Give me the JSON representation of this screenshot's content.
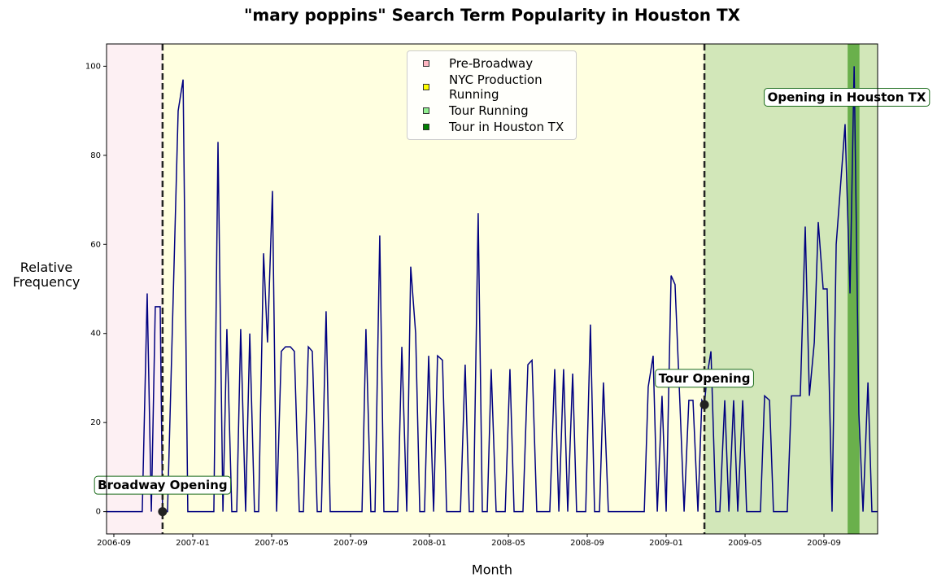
{
  "chart_data": {
    "type": "line",
    "title": "\"mary poppins\" Search Term Popularity in Houston TX",
    "x_label": "Month",
    "y_label": "Relative Frequency",
    "color": "#000080",
    "x": [
      -0.37,
      1.44,
      1.69,
      1.9,
      2.1,
      2.35,
      2.47,
      2.72,
      3.26,
      3.51,
      3.75,
      5.07,
      5.28,
      5.53,
      5.73,
      5.98,
      6.23,
      6.43,
      6.68,
      6.89,
      7.13,
      7.34,
      7.59,
      7.79,
      8.04,
      8.25,
      8.49,
      8.7,
      8.95,
      9.15,
      9.4,
      9.61,
      9.86,
      10.06,
      10.31,
      10.52,
      10.76,
      10.97,
      12.58,
      12.78,
      13.03,
      13.24,
      13.48,
      13.69,
      14.39,
      14.6,
      14.85,
      15.05,
      15.3,
      15.51,
      15.75,
      15.96,
      16.21,
      16.41,
      16.66,
      16.87,
      17.57,
      17.81,
      18.02,
      18.23,
      18.47,
      18.68,
      18.93,
      19.13,
      19.38,
      19.84,
      20.08,
      20.29,
      20.74,
      20.99,
      21.2,
      21.44,
      22.1,
      22.35,
      22.56,
      22.8,
      23.01,
      23.26,
      23.46,
      23.92,
      24.16,
      24.37,
      24.62,
      24.82,
      25.07,
      26.89,
      27.09,
      27.34,
      27.55,
      27.79,
      28.0,
      28.25,
      28.45,
      28.7,
      28.91,
      29.15,
      29.36,
      29.61,
      29.81,
      29.94,
      30.06,
      30.27,
      30.52,
      30.72,
      30.97,
      31.18,
      31.42,
      31.63,
      31.88,
      32.08,
      32.78,
      32.99,
      33.24,
      33.44,
      34.14,
      34.35,
      34.8,
      35.05,
      35.26,
      35.51,
      35.71,
      35.96,
      36.16,
      36.41,
      36.62,
      37.07,
      37.32,
      37.53,
      37.77,
      37.98,
      38.23,
      38.43,
      38.72
    ],
    "values": [
      0,
      0,
      49,
      0,
      46,
      46,
      0,
      0,
      90,
      97,
      0,
      0,
      83,
      0,
      41,
      0,
      0,
      41,
      0,
      40,
      0,
      0,
      58,
      38,
      72,
      0,
      36,
      37,
      37,
      36,
      0,
      0,
      37,
      36,
      0,
      0,
      45,
      0,
      0,
      41,
      0,
      0,
      62,
      0,
      0,
      37,
      0,
      55,
      40,
      0,
      0,
      35,
      0,
      35,
      34,
      0,
      0,
      33,
      0,
      0,
      67,
      0,
      0,
      32,
      0,
      0,
      32,
      0,
      0,
      33,
      34,
      0,
      0,
      32,
      0,
      32,
      0,
      31,
      0,
      0,
      42,
      0,
      0,
      29,
      0,
      0,
      28,
      35,
      0,
      26,
      0,
      53,
      51,
      24,
      0,
      25,
      25,
      0,
      25,
      24,
      30,
      36,
      0,
      0,
      25,
      0,
      25,
      0,
      25,
      0,
      0,
      26,
      25,
      0,
      0,
      26,
      26,
      64,
      26,
      38,
      65,
      50,
      50,
      0,
      60,
      87,
      49,
      100,
      22,
      0,
      29,
      0,
      0
    ],
    "xlim": [
      -0.37,
      38.72
    ],
    "ylim": [
      -5,
      105
    ],
    "xticks": [
      {
        "value": 0,
        "label": "2006-09"
      },
      {
        "value": 4,
        "label": "2007-01"
      },
      {
        "value": 8,
        "label": "2007-05"
      },
      {
        "value": 12,
        "label": "2007-09"
      },
      {
        "value": 16,
        "label": "2008-01"
      },
      {
        "value": 20,
        "label": "2008-05"
      },
      {
        "value": 24,
        "label": "2008-09"
      },
      {
        "value": 28,
        "label": "2009-01"
      },
      {
        "value": 32,
        "label": "2009-05"
      },
      {
        "value": 36,
        "label": "2009-09"
      }
    ],
    "yticks": [
      0,
      20,
      40,
      60,
      80,
      100
    ],
    "regions": [
      {
        "name": "Pre-Broadway",
        "start": -0.37,
        "end": 2.47,
        "color": "#fdf0f3",
        "legend_color": "#ffb6c1"
      },
      {
        "name": "NYC Production Running",
        "start": 2.47,
        "end": 29.94,
        "color": "#ffffe0",
        "legend_color": "#ffff00"
      },
      {
        "name": "Tour Running",
        "start": 29.94,
        "end": 38.72,
        "color": "#d2e7b9",
        "legend_color": "#90ee90"
      },
      {
        "name": "Tour in Houston TX",
        "start": 37.2,
        "end": 37.8,
        "color": "#6ab04c",
        "legend_color": "#008000"
      }
    ],
    "events": [
      {
        "label": "Broadway Opening",
        "x": 2.47,
        "y": 0
      },
      {
        "label": "Tour Opening",
        "x": 29.94,
        "y": 24
      }
    ],
    "note": "Opening in Houston TX"
  }
}
